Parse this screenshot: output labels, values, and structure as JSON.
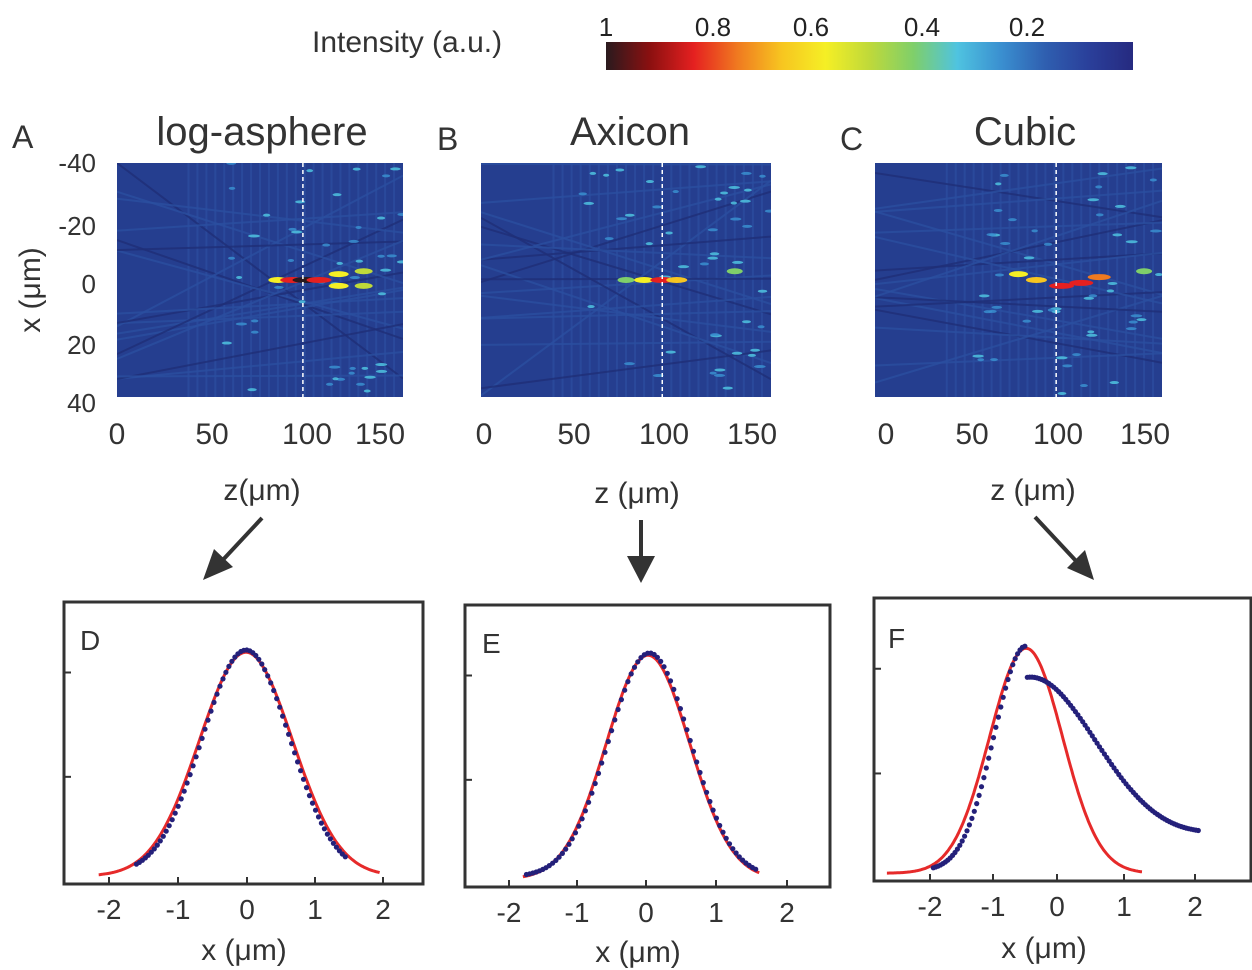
{
  "colorbar": {
    "label": "Intensity (a.u.)",
    "ticks": [
      "1",
      "0.8",
      "0.6",
      "0.4",
      "0.2"
    ],
    "colormap": [
      "#2a1a1e",
      "#8b1010",
      "#e52020",
      "#f07a20",
      "#f7c520",
      "#f5ef25",
      "#bfd93a",
      "#7fcf6a",
      "#4fc3e0",
      "#3a8fd0",
      "#2f5fb0",
      "#2a3f9a",
      "#262a80"
    ]
  },
  "colors": {
    "background_map": "#253e8f",
    "fit_line": "#e62a2a",
    "measured_points": "#24207a",
    "arrow": "#333333",
    "frame": "#333333"
  },
  "arrows": [
    "down-left-arrow",
    "down-arrow",
    "down-right-arrow"
  ],
  "chart_data": [
    {
      "type": "heatmap",
      "panel": "A",
      "title": "log-asphere",
      "xlabel": "z(μm)",
      "ylabel": "x (μm)",
      "xlim": [
        0,
        160
      ],
      "ylim": [
        -40,
        40
      ],
      "x_ticks": [
        "0",
        "50",
        "100",
        "150"
      ],
      "y_ticks": [
        "-40",
        "-20",
        "0",
        "20",
        "40"
      ],
      "marker_z": 104,
      "hotspots": [
        {
          "z": 90,
          "x": 0,
          "intensity": 0.55
        },
        {
          "z": 98,
          "x": 0,
          "intensity": 0.8
        },
        {
          "z": 106,
          "x": 0,
          "intensity": 1.0
        },
        {
          "z": 113,
          "x": 0,
          "intensity": 0.85
        },
        {
          "z": 124,
          "x": -2,
          "intensity": 0.6
        },
        {
          "z": 124,
          "x": 2,
          "intensity": 0.6
        },
        {
          "z": 138,
          "x": -3,
          "intensity": 0.5
        },
        {
          "z": 138,
          "x": 2,
          "intensity": 0.5
        }
      ]
    },
    {
      "type": "heatmap",
      "panel": "B",
      "title": "Axicon",
      "xlabel": "z (μm)",
      "xlim": [
        0,
        160
      ],
      "ylim": [
        -40,
        40
      ],
      "x_ticks": [
        "0",
        "50",
        "100",
        "150"
      ],
      "marker_z": 100,
      "hotspots": [
        {
          "z": 80,
          "x": 0,
          "intensity": 0.45
        },
        {
          "z": 90,
          "x": 0,
          "intensity": 0.6
        },
        {
          "z": 100,
          "x": 0,
          "intensity": 0.8
        },
        {
          "z": 108,
          "x": 0,
          "intensity": 0.65
        },
        {
          "z": 140,
          "x": -3,
          "intensity": 0.4
        }
      ]
    },
    {
      "type": "heatmap",
      "panel": "C",
      "title": "Cubic",
      "xlabel": "z (μm)",
      "xlim": [
        0,
        160
      ],
      "ylim": [
        -40,
        40
      ],
      "x_ticks": [
        "0",
        "50",
        "100",
        "150"
      ],
      "marker_z": 101,
      "hotspots": [
        {
          "z": 80,
          "x": -2,
          "intensity": 0.55
        },
        {
          "z": 90,
          "x": 0,
          "intensity": 0.65
        },
        {
          "z": 104,
          "x": 2,
          "intensity": 0.85
        },
        {
          "z": 115,
          "x": 1,
          "intensity": 0.8
        },
        {
          "z": 125,
          "x": -1,
          "intensity": 0.75
        },
        {
          "z": 150,
          "x": -3,
          "intensity": 0.4
        }
      ]
    },
    {
      "type": "line",
      "panel": "D",
      "xlabel": "x (μm)",
      "xlim": [
        -2.6,
        2.7
      ],
      "ylim": [
        0,
        1.1
      ],
      "x_ticks": [
        "-2",
        "-1",
        "0",
        "1",
        "2"
      ],
      "fit": {
        "model": "gaussian",
        "center": 0.0,
        "sigma": 0.68,
        "x_range": [
          -2.15,
          1.95
        ]
      },
      "measured": {
        "model": "gaussian",
        "center": 0.0,
        "sigma": 0.64,
        "x_range": [
          -1.6,
          1.45
        ]
      }
    },
    {
      "type": "line",
      "panel": "E",
      "xlabel": "x (μm)",
      "xlim": [
        -2.6,
        2.7
      ],
      "ylim": [
        0,
        1.1
      ],
      "x_ticks": [
        "-2",
        "-1",
        "0",
        "1",
        "2"
      ],
      "fit": {
        "model": "gaussian",
        "center": 0.0,
        "sigma": 0.6,
        "x_range": [
          -1.8,
          1.6
        ]
      },
      "measured": {
        "model": "gaussian",
        "center": 0.02,
        "sigma": 0.59,
        "x_range": [
          -1.75,
          1.55
        ]
      }
    },
    {
      "type": "line",
      "panel": "F",
      "xlabel": "x (μm)",
      "xlim": [
        -2.8,
        2.6
      ],
      "ylim": [
        0,
        1.1
      ],
      "x_ticks": [
        "-2",
        "-1",
        "0",
        "1",
        "2"
      ],
      "fit": {
        "model": "gaussian",
        "center": -0.55,
        "sigma": 0.55,
        "x_range": [
          -2.65,
          1.2
        ]
      },
      "measured": {
        "model": "skewed",
        "center": -0.55,
        "sigma_left": 0.48,
        "sigma_right": 1.05,
        "x_range": [
          -1.95,
          2.05
        ]
      }
    }
  ]
}
